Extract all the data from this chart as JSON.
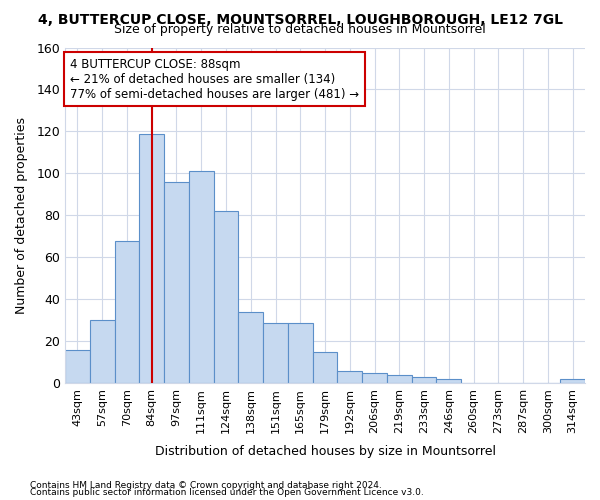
{
  "title": "4, BUTTERCUP CLOSE, MOUNTSORREL, LOUGHBOROUGH, LE12 7GL",
  "subtitle": "Size of property relative to detached houses in Mountsorrel",
  "xlabel": "Distribution of detached houses by size in Mountsorrel",
  "ylabel": "Number of detached properties",
  "categories": [
    "43sqm",
    "57sqm",
    "70sqm",
    "84sqm",
    "97sqm",
    "111sqm",
    "124sqm",
    "138sqm",
    "151sqm",
    "165sqm",
    "179sqm",
    "192sqm",
    "206sqm",
    "219sqm",
    "233sqm",
    "246sqm",
    "260sqm",
    "273sqm",
    "287sqm",
    "300sqm",
    "314sqm"
  ],
  "values": [
    16,
    30,
    68,
    119,
    96,
    101,
    82,
    34,
    29,
    29,
    15,
    6,
    5,
    4,
    3,
    2,
    0,
    0,
    0,
    0,
    2
  ],
  "bar_facecolor": "#c6d9f0",
  "bar_edgecolor": "#5b8fc9",
  "vline_index": 3,
  "vline_color": "#cc0000",
  "annotation_text": "4 BUTTERCUP CLOSE: 88sqm\n← 21% of detached houses are smaller (134)\n77% of semi-detached houses are larger (481) →",
  "annotation_box_facecolor": "#ffffff",
  "annotation_box_edgecolor": "#cc0000",
  "ylim": [
    0,
    160
  ],
  "yticks": [
    0,
    20,
    40,
    60,
    80,
    100,
    120,
    140,
    160
  ],
  "footer1": "Contains HM Land Registry data © Crown copyright and database right 2024.",
  "footer2": "Contains public sector information licensed under the Open Government Licence v3.0.",
  "background_color": "#ffffff",
  "grid_color": "#d0d8e8"
}
